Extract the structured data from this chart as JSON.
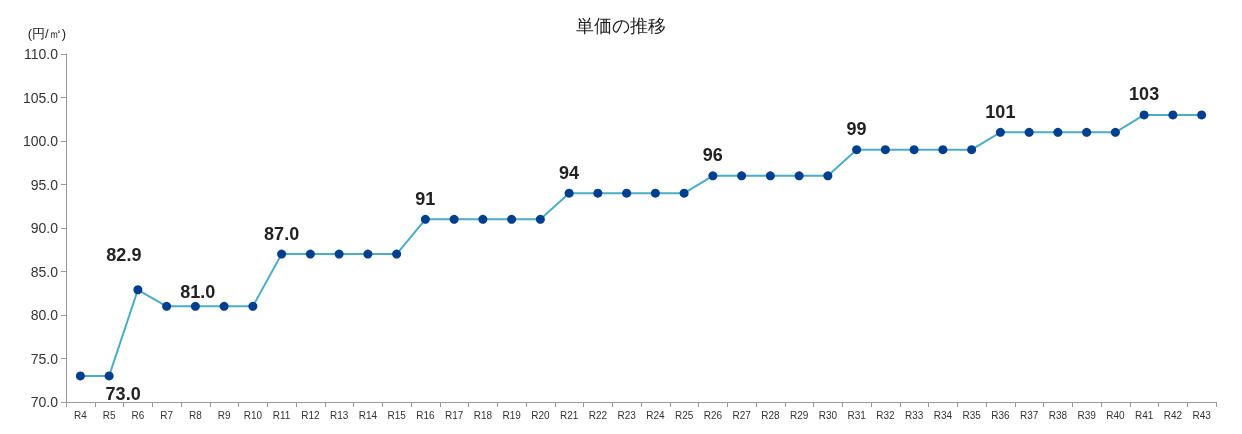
{
  "chart_data": {
    "type": "line",
    "title": "単価の推移",
    "ylabel": "(円/㎡)",
    "categories": [
      "R4",
      "R5",
      "R6",
      "R7",
      "R8",
      "R9",
      "R10",
      "R11",
      "R12",
      "R13",
      "R14",
      "R15",
      "R16",
      "R17",
      "R18",
      "R19",
      "R20",
      "R21",
      "R22",
      "R23",
      "R24",
      "R25",
      "R26",
      "R27",
      "R28",
      "R29",
      "R30",
      "R31",
      "R32",
      "R33",
      "R34",
      "R35",
      "R36",
      "R37",
      "R38",
      "R39",
      "R40",
      "R41",
      "R42",
      "R43"
    ],
    "series": [
      {
        "color": "#4bacc6",
        "colors": [
          "#003f8f",
          "#003f8f",
          "#003f8f",
          "#003f8f",
          "#003f8f",
          "#003f8f",
          "#003f8f",
          "#003f8f",
          "#003f8f",
          "#003f8f",
          "#003f8f",
          "#003f8f",
          "#003f8f",
          "#003f8f",
          "#003f8f",
          "#003f8f",
          "#003f8f",
          "#003f8f",
          "#003f8f",
          "#003f8f",
          "#003f8f",
          "#003f8f",
          "#003f8f",
          "#003f8f",
          "#003f8f",
          "#003f8f",
          "#003f8f",
          "#003f8f",
          "#003f8f",
          "#003f8f",
          "#003f8f",
          "#003f8f",
          "#003f8f",
          "#003f8f",
          "#003f8f",
          "#003f8f",
          "#003f8f",
          "#003f8f",
          "#003f8f",
          "#003f8f"
        ],
        "values": [
          73,
          73,
          82.9,
          81,
          81,
          81,
          81,
          87,
          87,
          87,
          87,
          87,
          91,
          91,
          91,
          91,
          91,
          94,
          94,
          94,
          94,
          94,
          96,
          96,
          96,
          96,
          96,
          99,
          99,
          99,
          99,
          99,
          101,
          101,
          101,
          101,
          101,
          103,
          103,
          103
        ],
        "value_labels": [
          null,
          "73.0",
          "82.9",
          "81.0",
          null,
          null,
          null,
          "87.0",
          null,
          null,
          null,
          null,
          "91",
          null,
          null,
          null,
          null,
          "94",
          null,
          null,
          null,
          null,
          "96",
          null,
          null,
          null,
          null,
          "99",
          null,
          null,
          null,
          null,
          "101",
          null,
          null,
          null,
          null,
          "103",
          null,
          null
        ]
      }
    ],
    "ylim": [
      70,
      110
    ],
    "yticks": [
      {
        "value": 70,
        "label": "70.0"
      },
      {
        "value": 75,
        "label": "75.0"
      },
      {
        "value": 80,
        "label": "80.0"
      },
      {
        "value": 85,
        "label": "85.0"
      },
      {
        "value": 90,
        "label": "90.0"
      },
      {
        "value": 95,
        "label": "95.0"
      },
      {
        "value": 100,
        "label": "100.0"
      },
      {
        "value": 105,
        "label": "105.0"
      },
      {
        "value": 110,
        "label": "110.0"
      }
    ],
    "marker": "circle",
    "line_style": "solid",
    "grid": false
  }
}
